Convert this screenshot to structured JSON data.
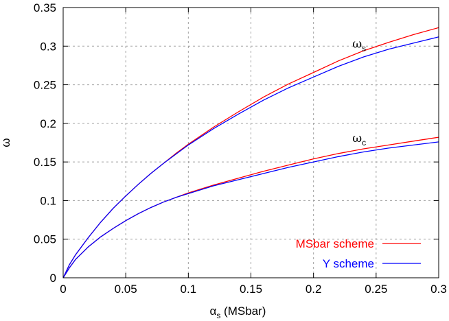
{
  "chart_data": {
    "type": "line",
    "title": "",
    "xlabel": {
      "main": "α",
      "sub": "s",
      "rest": " (MSbar)"
    },
    "ylabel": "ω",
    "xlim": [
      0,
      0.3
    ],
    "ylim": [
      0,
      0.35
    ],
    "xticks": [
      0,
      0.05,
      0.1,
      0.15,
      0.2,
      0.25,
      0.3
    ],
    "yticks": [
      0,
      0.05,
      0.1,
      0.15,
      0.2,
      0.25,
      0.3,
      0.35
    ],
    "xtick_labels": [
      "0",
      "0.05",
      "0.1",
      "0.15",
      "0.2",
      "0.25",
      "0.3"
    ],
    "ytick_labels": [
      "0",
      "0.05",
      "0.1",
      "0.15",
      "0.2",
      "0.25",
      "0.3",
      "0.35"
    ],
    "grid": true,
    "legend_position": "bottom-right",
    "colors": {
      "msbar": "#ff0000",
      "y": "#0000ff"
    },
    "x": [
      0,
      0.005,
      0.01,
      0.02,
      0.03,
      0.04,
      0.05,
      0.06,
      0.07,
      0.08,
      0.09,
      0.1,
      0.12,
      0.14,
      0.16,
      0.18,
      0.2,
      0.22,
      0.24,
      0.26,
      0.28,
      0.3
    ],
    "series": [
      {
        "name": "MSbar scheme",
        "color": "#ff0000",
        "curve": "ω_s",
        "values": [
          0,
          0.017,
          0.03,
          0.052,
          0.072,
          0.09,
          0.106,
          0.121,
          0.135,
          0.148,
          0.161,
          0.173,
          0.195,
          0.215,
          0.234,
          0.251,
          0.266,
          0.281,
          0.294,
          0.305,
          0.315,
          0.324
        ]
      },
      {
        "name": "Y scheme",
        "color": "#0000ff",
        "curve": "ω_s",
        "values": [
          0,
          0.017,
          0.03,
          0.052,
          0.072,
          0.09,
          0.106,
          0.121,
          0.135,
          0.148,
          0.16,
          0.172,
          0.193,
          0.212,
          0.23,
          0.246,
          0.26,
          0.274,
          0.286,
          0.296,
          0.304,
          0.312
        ]
      },
      {
        "name": "MSbar scheme",
        "color": "#ff0000",
        "curve": "ω_c",
        "values": [
          0,
          0.013,
          0.024,
          0.04,
          0.053,
          0.064,
          0.074,
          0.083,
          0.091,
          0.098,
          0.104,
          0.11,
          0.12,
          0.129,
          0.138,
          0.146,
          0.154,
          0.161,
          0.167,
          0.172,
          0.177,
          0.182
        ]
      },
      {
        "name": "Y scheme",
        "color": "#0000ff",
        "curve": "ω_c",
        "values": [
          0,
          0.013,
          0.024,
          0.04,
          0.053,
          0.064,
          0.074,
          0.083,
          0.091,
          0.098,
          0.104,
          0.109,
          0.119,
          0.127,
          0.135,
          0.143,
          0.15,
          0.157,
          0.163,
          0.168,
          0.172,
          0.176
        ]
      }
    ],
    "annotations": [
      {
        "main": "ω",
        "sub": "s",
        "x": 0.22,
        "y": 0.298
      },
      {
        "main": "ω",
        "sub": "c",
        "x": 0.22,
        "y": 0.176
      }
    ]
  }
}
